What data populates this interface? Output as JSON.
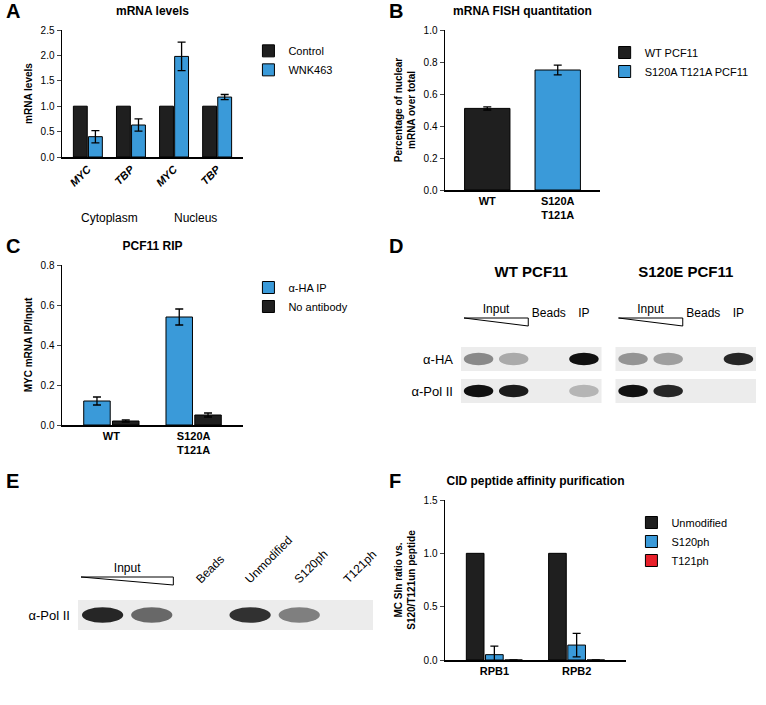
{
  "chart_data": [
    {
      "panel": "A",
      "type": "bar",
      "title": "mRNA levels",
      "y_label": "mRNA levels",
      "groups": [
        {
          "label": "Cytoplasm",
          "categories": [
            "MYC",
            "TBP"
          ]
        },
        {
          "label": "Nucleus",
          "categories": [
            "MYC",
            "TBP"
          ]
        }
      ],
      "series": [
        {
          "name": "Control",
          "color": "#1f1f1f",
          "values": [
            1,
            1,
            1,
            1
          ]
        },
        {
          "name": "WNK463",
          "color": "#3a9ad9",
          "values": [
            0.4,
            0.63,
            1.98,
            1.18
          ],
          "errors": [
            0.12,
            0.12,
            0.28,
            0.05
          ]
        }
      ],
      "ylim": [
        0,
        2.5
      ],
      "yticks": [
        {
          "value": 0,
          "label": "0.0"
        },
        0.5,
        {
          "value": 1,
          "label": "1.0"
        },
        1.5,
        {
          "value": 2,
          "label": "2.0"
        },
        2.5
      ],
      "grid": false,
      "legend": "right"
    },
    {
      "panel": "B",
      "type": "bar",
      "title": "mRNA FISH quantitation",
      "y_label": "Percentage of nuclear mRNA over total",
      "categories": [
        "WT",
        "S120A T121A"
      ],
      "series": [
        {
          "name": "WT PCF11",
          "color": "#1f1f1f",
          "values": [
            0.51,
            null
          ],
          "errors": [
            0.01,
            null
          ]
        },
        {
          "name": "S120A T121A PCF11",
          "color": "#3a9ad9",
          "values": [
            null,
            0.75
          ],
          "errors": [
            null,
            0.03
          ]
        }
      ],
      "ylim": [
        0,
        1
      ],
      "yticks": [
        {
          "value": 0,
          "label": "0.0"
        },
        0.2,
        0.4,
        0.6,
        0.8,
        {
          "value": 1,
          "label": "1.0"
        }
      ],
      "grid": false,
      "legend": "right"
    },
    {
      "panel": "C",
      "type": "bar",
      "title": "PCF11 RIP",
      "y_label": "MYC mRNA IP/Input",
      "categories": [
        "WT",
        "S120A T121A"
      ],
      "series": [
        {
          "name": "α-HA IP",
          "color": "#3a9ad9",
          "values": [
            0.12,
            0.54
          ],
          "errors": [
            0.02,
            0.04
          ]
        },
        {
          "name": "No antibody",
          "color": "#1f1f1f",
          "values": [
            0.02,
            0.05
          ],
          "errors": [
            0.005,
            0.01
          ]
        }
      ],
      "ylim": [
        0,
        0.8
      ],
      "yticks": [
        {
          "value": 0,
          "label": "0.0"
        },
        0.2,
        0.4,
        0.6,
        0.8
      ],
      "grid": false,
      "legend": "right"
    },
    {
      "panel": "D",
      "type": "blot",
      "groups": [
        {
          "title": "WT PCF11",
          "lanes": [
            {
              "label": "Input",
              "span": 2,
              "gradient": true
            },
            {
              "label": "Beads",
              "span": 1
            },
            {
              "label": "IP",
              "span": 1
            }
          ]
        },
        {
          "title": "S120E PCF11",
          "lanes": [
            {
              "label": "Input",
              "span": 2,
              "gradient": true
            },
            {
              "label": "Beads",
              "span": 1
            },
            {
              "label": "IP",
              "span": 1
            }
          ]
        }
      ],
      "rows": [
        {
          "label": "α-HA",
          "bands": [
            0.45,
            0.3,
            0,
            1,
            0.4,
            0.35,
            0,
            0.9
          ]
        },
        {
          "label": "α-Pol II",
          "bands": [
            1,
            0.95,
            0,
            0.25,
            1,
            0.9,
            0,
            0
          ]
        }
      ]
    },
    {
      "panel": "E",
      "type": "blot",
      "groups": [
        {
          "lanes": [
            {
              "label": "Input",
              "span": 2,
              "gradient": true
            },
            {
              "label": "Beads",
              "span": 1
            },
            {
              "label": "Unmodified",
              "span": 1
            },
            {
              "label": "S120ph",
              "span": 1
            },
            {
              "label": "T121ph",
              "span": 1
            }
          ]
        }
      ],
      "rows": [
        {
          "label": "α-Pol II",
          "bands": [
            0.9,
            0.6,
            0,
            0.85,
            0.5,
            0
          ]
        }
      ]
    },
    {
      "panel": "F",
      "type": "bar",
      "title": "CID peptide affinity purification",
      "y_label": "MC SIn ratio vs. S120/T121un peptide",
      "categories": [
        "RPB1",
        "RPB2"
      ],
      "series": [
        {
          "name": "Unmodified",
          "color": "#1f1f1f",
          "values": [
            1,
            1
          ]
        },
        {
          "name": "S120ph",
          "color": "#3a9ad9",
          "values": [
            0.05,
            0.14
          ],
          "errors": [
            0.08,
            0.11
          ]
        },
        {
          "name": "T121ph",
          "color": "#e8202a",
          "values": [
            0,
            0
          ],
          "errors": [
            0,
            0
          ]
        }
      ],
      "ylim": [
        0,
        1.5
      ],
      "yticks": [
        {
          "value": 0,
          "label": "0.0"
        },
        0.5,
        {
          "value": 1,
          "label": "1.0"
        },
        1.5
      ],
      "grid": false,
      "legend": "right"
    }
  ]
}
